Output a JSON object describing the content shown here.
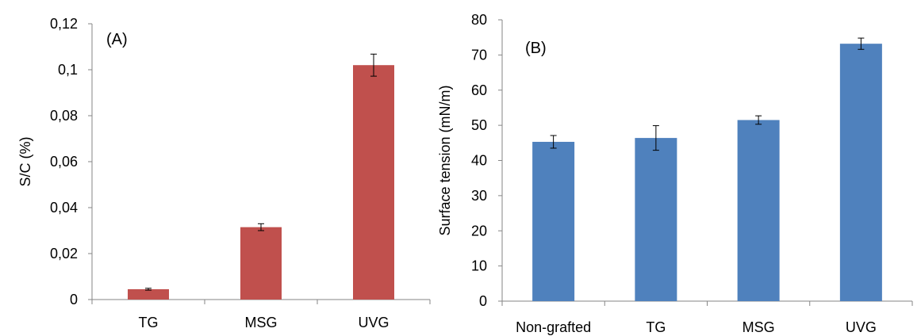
{
  "chart_data": [
    {
      "type": "bar",
      "panel_label": "(A)",
      "categories": [
        "TG",
        "MSG",
        "UVG"
      ],
      "values": [
        0.0045,
        0.0315,
        0.102
      ],
      "errors": [
        0.0004,
        0.0015,
        0.0048
      ],
      "ylabel": "S/C (%)",
      "xlabel": "",
      "ylim": [
        0,
        0.12
      ],
      "yticks": [
        0,
        0.02,
        0.04,
        0.06,
        0.08,
        0.1,
        0.12
      ],
      "ytick_labels": [
        "0",
        "0,02",
        "0,04",
        "0,06",
        "0,08",
        "0,1",
        "0,12"
      ],
      "bar_color": "#C0504D",
      "grid": false
    },
    {
      "type": "bar",
      "panel_label": "(B)",
      "categories": [
        "Non-grafted",
        "TG",
        "MSG",
        "UVG"
      ],
      "values": [
        45.3,
        46.4,
        51.5,
        73.2
      ],
      "errors": [
        1.8,
        3.5,
        1.2,
        1.6
      ],
      "ylabel": "Surface tension (mN/m)",
      "xlabel": "",
      "ylim": [
        0,
        80
      ],
      "yticks": [
        0,
        10,
        20,
        30,
        40,
        50,
        60,
        70,
        80
      ],
      "ytick_labels": [
        "0",
        "10",
        "20",
        "30",
        "40",
        "50",
        "60",
        "70",
        "80"
      ],
      "bar_color": "#4F81BD",
      "grid": false
    }
  ]
}
